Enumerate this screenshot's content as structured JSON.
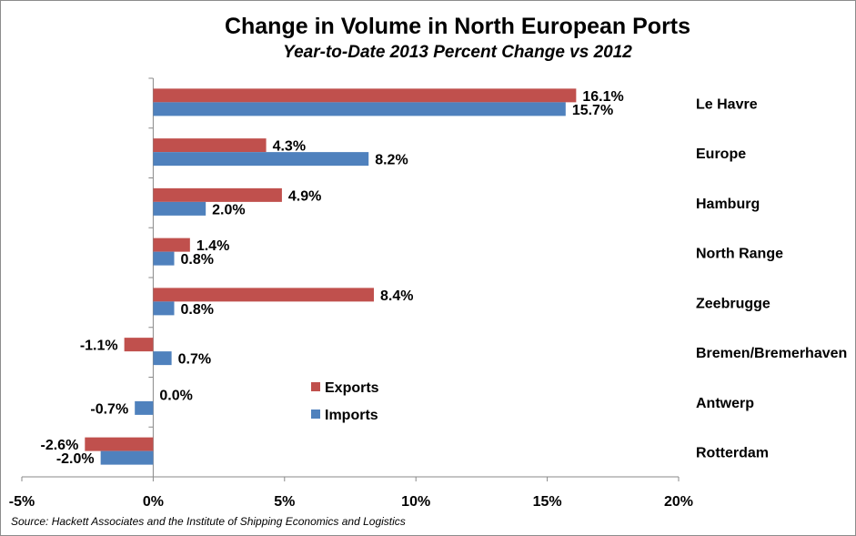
{
  "chart_data": {
    "type": "bar",
    "orientation": "horizontal",
    "title": "Change in Volume in North European Ports",
    "subtitle": "Year-to-Date  2013 Percent Change vs 2012",
    "source": "Source: Hackett Associates and the Institute of Shipping Economics and Logistics",
    "categories": [
      "Le Havre",
      "Europe",
      "Hamburg",
      "North Range",
      "Zeebrugge",
      "Bremen/Bremerhaven",
      "Antwerp",
      "Rotterdam"
    ],
    "series": [
      {
        "name": "Exports",
        "color": "#c0504d",
        "values": [
          16.1,
          4.3,
          4.9,
          1.4,
          8.4,
          -1.1,
          0.0,
          -2.6
        ],
        "labels": [
          "16.1%",
          "4.3%",
          "4.9%",
          "1.4%",
          "8.4%",
          "-1.1%",
          "0.0%",
          "-2.6%"
        ]
      },
      {
        "name": "Imports",
        "color": "#4f81bd",
        "values": [
          15.7,
          8.2,
          2.0,
          0.8,
          0.8,
          0.7,
          -0.7,
          -2.0
        ],
        "labels": [
          "15.7%",
          "8.2%",
          "2.0%",
          "0.8%",
          "0.8%",
          "0.7%",
          "-0.7%",
          "-2.0%"
        ]
      }
    ],
    "xlim": [
      -5,
      20
    ],
    "xticks": [
      -5,
      0,
      5,
      10,
      15,
      20
    ],
    "xtick_labels": [
      "-5%",
      "0%",
      "5%",
      "10%",
      "15%",
      "20%"
    ],
    "grid": false,
    "legend_position": "center"
  }
}
